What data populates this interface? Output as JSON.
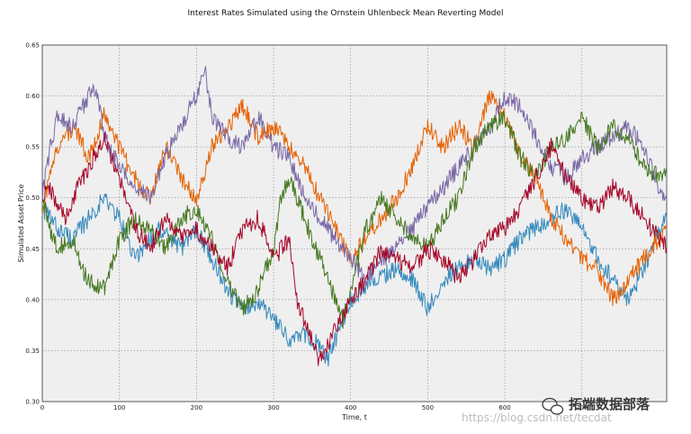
{
  "chart_data": {
    "type": "line",
    "title": "Interest Rates Simulated using the Ornstein Uhlenbeck Mean Reverting Model",
    "xlabel": "Time, t",
    "ylabel": "Simulated Asset Price",
    "xlim": [
      0,
      810
    ],
    "ylim": [
      0.3,
      0.65
    ],
    "xticks": [
      0,
      100,
      200,
      300,
      400,
      500,
      600,
      700
    ],
    "yticks": [
      0.3,
      0.35,
      0.4,
      0.45,
      0.5,
      0.55,
      0.6,
      0.65
    ],
    "ytick_labels": [
      "0.30",
      "0.35",
      "0.40",
      "0.45",
      "0.50",
      "0.55",
      "0.60",
      "0.65"
    ],
    "grid": true,
    "series": [
      {
        "name": "series-1-blue",
        "color": "#348ABD",
        "x": [
          0,
          20,
          40,
          60,
          80,
          100,
          120,
          150,
          180,
          200,
          220,
          240,
          260,
          280,
          300,
          320,
          340,
          360,
          370,
          380,
          400,
          430,
          460,
          480,
          500,
          520,
          540,
          560,
          580,
          600,
          620,
          640,
          660,
          680,
          700,
          720,
          740,
          760,
          780,
          800,
          810
        ],
        "values": [
          0.49,
          0.47,
          0.46,
          0.48,
          0.5,
          0.48,
          0.44,
          0.47,
          0.45,
          0.47,
          0.44,
          0.41,
          0.39,
          0.4,
          0.38,
          0.36,
          0.365,
          0.355,
          0.34,
          0.36,
          0.4,
          0.42,
          0.43,
          0.42,
          0.39,
          0.42,
          0.43,
          0.44,
          0.43,
          0.44,
          0.46,
          0.47,
          0.48,
          0.49,
          0.47,
          0.44,
          0.42,
          0.4,
          0.43,
          0.47,
          0.48
        ]
      },
      {
        "name": "series-2-orange",
        "color": "#E66101",
        "x": [
          0,
          10,
          20,
          40,
          60,
          80,
          90,
          100,
          120,
          140,
          160,
          180,
          200,
          220,
          240,
          260,
          280,
          300,
          320,
          340,
          360,
          380,
          400,
          420,
          440,
          460,
          480,
          500,
          520,
          540,
          560,
          580,
          600,
          620,
          640,
          660,
          680,
          700,
          720,
          740,
          760,
          780,
          800,
          810
        ],
        "values": [
          0.49,
          0.52,
          0.55,
          0.57,
          0.54,
          0.58,
          0.57,
          0.55,
          0.52,
          0.5,
          0.55,
          0.52,
          0.5,
          0.55,
          0.57,
          0.59,
          0.56,
          0.57,
          0.55,
          0.53,
          0.5,
          0.47,
          0.44,
          0.46,
          0.48,
          0.5,
          0.53,
          0.57,
          0.55,
          0.57,
          0.55,
          0.6,
          0.58,
          0.54,
          0.52,
          0.48,
          0.46,
          0.44,
          0.43,
          0.4,
          0.42,
          0.44,
          0.46,
          0.47
        ]
      },
      {
        "name": "series-3-purple",
        "color": "#7A68A6",
        "x": [
          0,
          10,
          20,
          40,
          60,
          70,
          80,
          100,
          120,
          140,
          160,
          180,
          200,
          210,
          220,
          240,
          260,
          280,
          300,
          320,
          340,
          360,
          380,
          400,
          420,
          440,
          460,
          480,
          500,
          520,
          540,
          560,
          580,
          600,
          620,
          640,
          660,
          680,
          700,
          720,
          740,
          760,
          780,
          800,
          810
        ],
        "values": [
          0.5,
          0.55,
          0.58,
          0.57,
          0.6,
          0.61,
          0.56,
          0.53,
          0.51,
          0.5,
          0.54,
          0.57,
          0.6,
          0.63,
          0.58,
          0.56,
          0.55,
          0.58,
          0.55,
          0.54,
          0.5,
          0.48,
          0.46,
          0.44,
          0.42,
          0.44,
          0.45,
          0.47,
          0.49,
          0.51,
          0.53,
          0.55,
          0.57,
          0.6,
          0.59,
          0.56,
          0.53,
          0.52,
          0.54,
          0.55,
          0.56,
          0.57,
          0.55,
          0.51,
          0.5
        ]
      },
      {
        "name": "series-4-green",
        "color": "#467821",
        "x": [
          0,
          10,
          20,
          40,
          50,
          60,
          80,
          100,
          120,
          140,
          160,
          180,
          200,
          220,
          240,
          260,
          280,
          300,
          310,
          320,
          340,
          360,
          380,
          390,
          400,
          420,
          440,
          460,
          480,
          500,
          520,
          540,
          560,
          580,
          600,
          620,
          640,
          660,
          680,
          700,
          720,
          740,
          760,
          780,
          800,
          810
        ],
        "values": [
          0.5,
          0.47,
          0.45,
          0.46,
          0.43,
          0.42,
          0.41,
          0.46,
          0.48,
          0.47,
          0.45,
          0.48,
          0.49,
          0.46,
          0.42,
          0.39,
          0.41,
          0.45,
          0.5,
          0.52,
          0.48,
          0.44,
          0.4,
          0.38,
          0.41,
          0.47,
          0.5,
          0.48,
          0.46,
          0.45,
          0.48,
          0.5,
          0.55,
          0.57,
          0.58,
          0.54,
          0.52,
          0.55,
          0.56,
          0.58,
          0.55,
          0.57,
          0.56,
          0.53,
          0.52,
          0.53
        ]
      },
      {
        "name": "series-5-red",
        "color": "#A60628",
        "x": [
          0,
          10,
          20,
          30,
          40,
          60,
          80,
          100,
          120,
          140,
          160,
          180,
          200,
          220,
          240,
          260,
          280,
          300,
          320,
          330,
          340,
          360,
          380,
          400,
          420,
          440,
          460,
          480,
          500,
          520,
          540,
          560,
          580,
          600,
          620,
          640,
          660,
          680,
          700,
          720,
          740,
          760,
          780,
          800,
          810
        ],
        "values": [
          0.5,
          0.51,
          0.49,
          0.48,
          0.5,
          0.53,
          0.56,
          0.52,
          0.47,
          0.45,
          0.48,
          0.46,
          0.47,
          0.45,
          0.43,
          0.47,
          0.48,
          0.44,
          0.46,
          0.4,
          0.38,
          0.34,
          0.37,
          0.4,
          0.42,
          0.45,
          0.44,
          0.43,
          0.45,
          0.44,
          0.42,
          0.44,
          0.46,
          0.47,
          0.49,
          0.52,
          0.55,
          0.52,
          0.5,
          0.49,
          0.51,
          0.5,
          0.48,
          0.46,
          0.45
        ]
      }
    ]
  },
  "watermark": {
    "url": "https://blog.csdn.net/tecdat",
    "brand": "拓端数据部落"
  }
}
